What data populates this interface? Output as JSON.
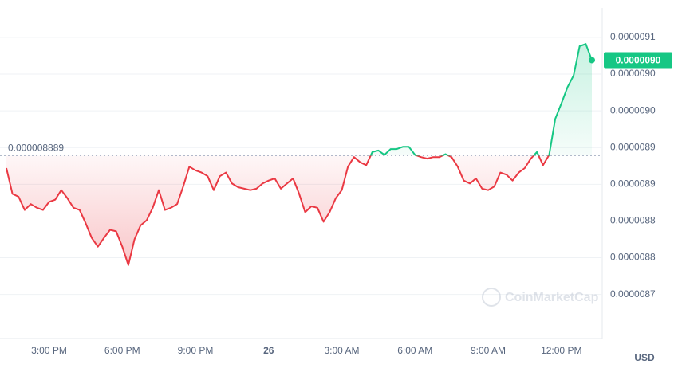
{
  "chart_data": {
    "type": "line",
    "categories": [
      null,
      null,
      null,
      null,
      null,
      null,
      null,
      "3:00 PM",
      null,
      null,
      null,
      null,
      null,
      null,
      null,
      null,
      null,
      null,
      null,
      "6:00 PM",
      null,
      null,
      null,
      null,
      null,
      null,
      null,
      null,
      null,
      null,
      null,
      "9:00 PM",
      null,
      null,
      null,
      null,
      null,
      null,
      null,
      null,
      null,
      null,
      null,
      "26",
      null,
      null,
      null,
      null,
      null,
      null,
      null,
      null,
      null,
      null,
      null,
      "3:00 AM",
      null,
      null,
      null,
      null,
      null,
      null,
      null,
      null,
      null,
      null,
      null,
      "6:00 AM",
      null,
      null,
      null,
      null,
      null,
      null,
      null,
      null,
      null,
      null,
      null,
      "9:00 AM",
      null,
      null,
      null,
      null,
      null,
      null,
      null,
      null,
      null,
      null,
      null,
      "12:00 PM",
      null,
      null,
      null,
      null,
      null
    ],
    "values": [
      8.872e-06,
      8.837e-06,
      8.833e-06,
      8.815e-06,
      8.823e-06,
      8.818e-06,
      8.815e-06,
      8.826e-06,
      8.829e-06,
      8.842e-06,
      8.831e-06,
      8.818e-06,
      8.815e-06,
      8.797e-06,
      8.777e-06,
      8.765e-06,
      8.777e-06,
      8.788e-06,
      8.786e-06,
      8.765e-06,
      8.74e-06,
      8.775e-06,
      8.794e-06,
      8.801e-06,
      8.818e-06,
      8.842e-06,
      8.815e-06,
      8.818e-06,
      8.823e-06,
      8.847e-06,
      8.874e-06,
      8.869e-06,
      8.866e-06,
      8.861e-06,
      8.842e-06,
      8.861e-06,
      8.866e-06,
      8.851e-06,
      8.846e-06,
      8.844e-06,
      8.842e-06,
      8.844e-06,
      8.851e-06,
      8.855e-06,
      8.858e-06,
      8.844e-06,
      8.851e-06,
      8.858e-06,
      8.837e-06,
      8.812e-06,
      8.82e-06,
      8.818e-06,
      8.799e-06,
      8.812e-06,
      8.831e-06,
      8.842e-06,
      8.874e-06,
      8.887e-06,
      8.88e-06,
      8.876e-06,
      8.894e-06,
      8.896e-06,
      8.89e-06,
      8.898e-06,
      8.898e-06,
      8.901e-06,
      8.901e-06,
      8.89e-06,
      8.887e-06,
      8.885e-06,
      8.887e-06,
      8.887e-06,
      8.891e-06,
      8.887e-06,
      8.874e-06,
      8.855e-06,
      8.851e-06,
      8.858e-06,
      8.844e-06,
      8.842e-06,
      8.847e-06,
      8.866e-06,
      8.863e-06,
      8.855e-06,
      8.866e-06,
      8.872e-06,
      8.885e-06,
      8.894e-06,
      8.876e-06,
      8.89e-06,
      8.939e-06,
      8.96e-06,
      8.982e-06,
      8.998e-06,
      9.038e-06,
      9.041e-06,
      9.019e-06
    ],
    "baseline": 8.889e-06,
    "price_tag": "0.0000090",
    "up_color": "#16c784",
    "down_color": "#ea3943",
    "ylim": [
      8.64e-06,
      9.09e-06
    ],
    "yticks": [
      {
        "value": 9.05e-06,
        "label": "0.0000091"
      },
      {
        "value": 9e-06,
        "label": "0.0000090"
      },
      {
        "value": 8.95e-06,
        "label": "0.0000090"
      },
      {
        "value": 8.9e-06,
        "label": "0.0000089"
      },
      {
        "value": 8.85e-06,
        "label": "0.0000089"
      },
      {
        "value": 8.8e-06,
        "label": "0.0000088"
      },
      {
        "value": 8.75e-06,
        "label": "0.0000088"
      },
      {
        "value": 8.7e-06,
        "label": "0.0000087"
      }
    ],
    "grid": true,
    "currency": "USD",
    "watermark": "CoinMarketCap"
  }
}
